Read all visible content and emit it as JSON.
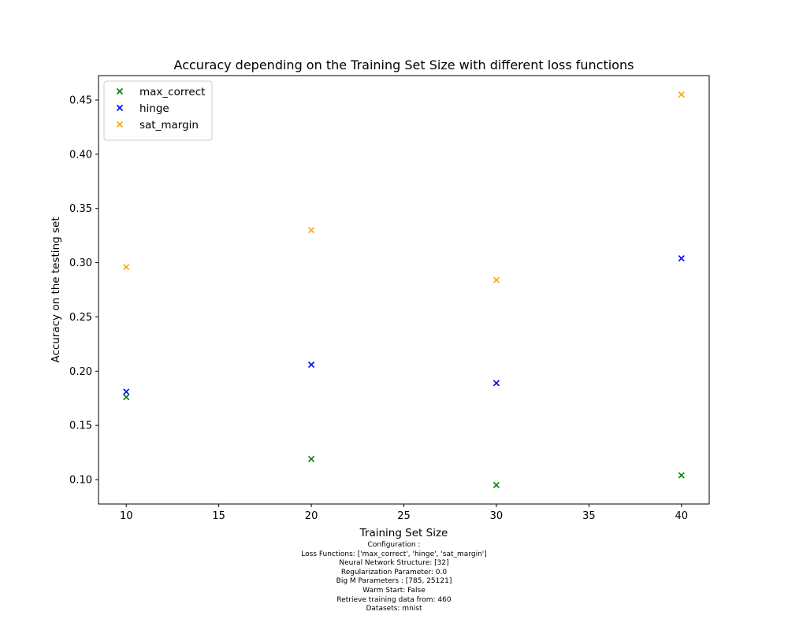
{
  "chart_data": {
    "type": "scatter",
    "title": "Accuracy depending on the Training Set Size with different loss functions",
    "xlabel": "Training Set Size",
    "ylabel": "Accuracy on the testing set",
    "xlim": [
      8.5,
      41.5
    ],
    "ylim": [
      0.0775,
      0.4725
    ],
    "xticks": [
      10,
      15,
      20,
      25,
      30,
      35,
      40
    ],
    "yticks": [
      0.1,
      0.15,
      0.2,
      0.25,
      0.3,
      0.35,
      0.4,
      0.45
    ],
    "xtick_labels": [
      "10",
      "15",
      "20",
      "25",
      "30",
      "35",
      "40"
    ],
    "ytick_labels": [
      "0.10",
      "0.15",
      "0.20",
      "0.25",
      "0.30",
      "0.35",
      "0.40",
      "0.45"
    ],
    "grid": false,
    "legend_position": "top-left",
    "marker": "x",
    "series": [
      {
        "name": "max_correct",
        "color": "#008000",
        "x": [
          10,
          20,
          30,
          40
        ],
        "y": [
          0.176,
          0.119,
          0.095,
          0.104
        ]
      },
      {
        "name": "hinge",
        "color": "#0000ff",
        "x": [
          10,
          20,
          30,
          40
        ],
        "y": [
          0.181,
          0.206,
          0.189,
          0.304
        ]
      },
      {
        "name": "sat_margin",
        "color": "#ffa500",
        "x": [
          10,
          20,
          30,
          40
        ],
        "y": [
          0.296,
          0.33,
          0.284,
          0.455
        ]
      }
    ]
  },
  "caption": {
    "lines": [
      "Configuration :",
      "Loss Functions: ['max_correct', 'hinge', 'sat_margin']",
      "Neural Network Structure: [32]",
      "Regularization Parameter: 0.0",
      "Big M Parameters : [785, 25121]",
      "Warm Start: False",
      "Retrieve training data from: 460",
      "Datasets: mnist"
    ]
  }
}
